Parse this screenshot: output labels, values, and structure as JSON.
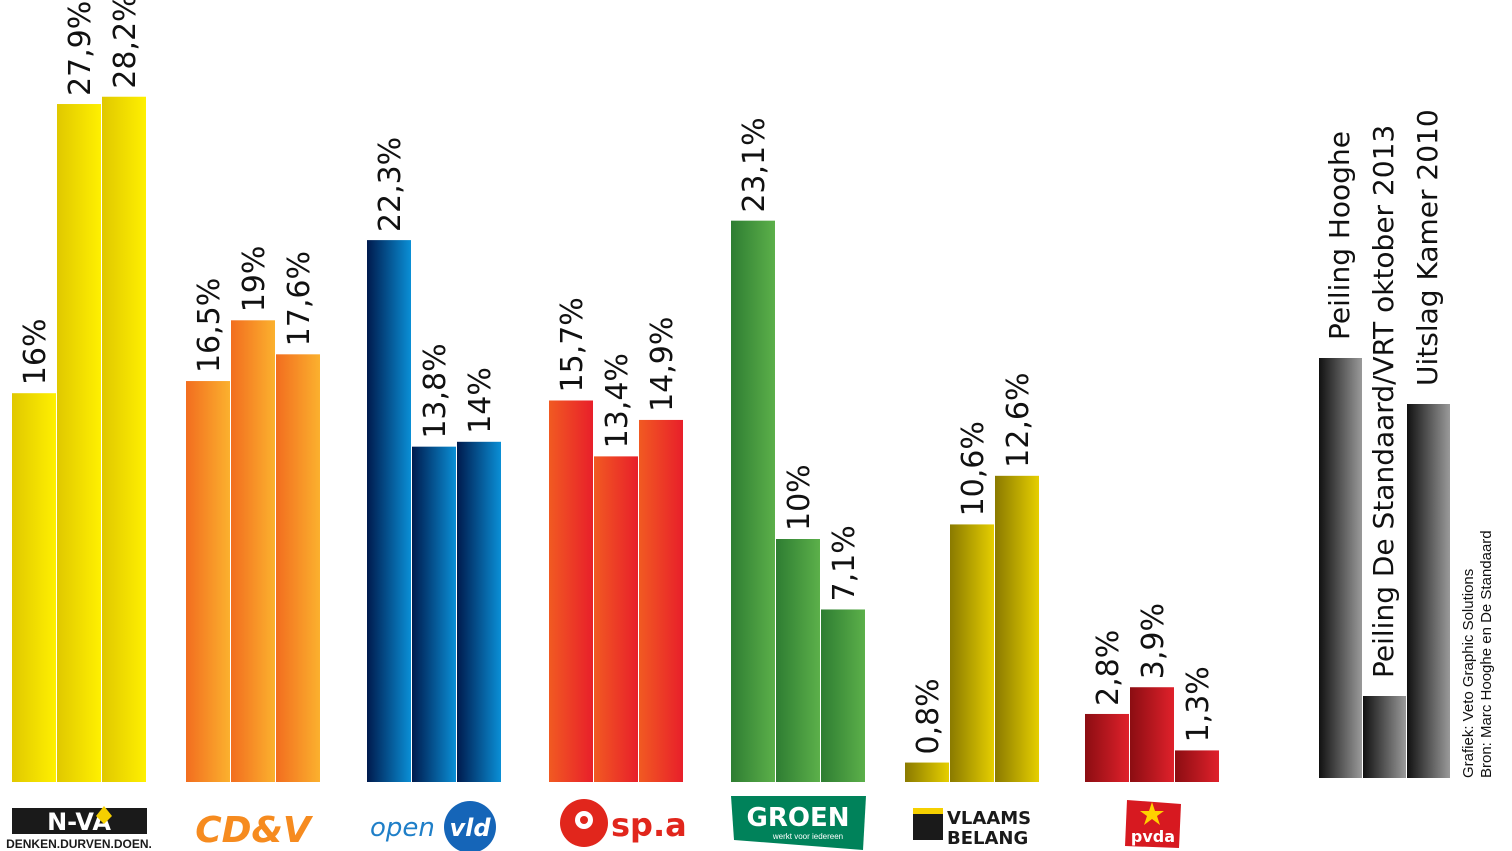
{
  "chart_data": {
    "type": "bar",
    "ylim": [
      0,
      30
    ],
    "series": [
      {
        "name": "Peiling Hooghe",
        "color": "#000000"
      },
      {
        "name": "Peiling De Standaard/VRT oktober 2013",
        "color": "#333333"
      },
      {
        "name": "Uitslag Kamer 2010",
        "color": "#555555"
      }
    ],
    "groups": [
      {
        "party": "N-VA",
        "logo_text": "N-VA",
        "logo_sub": "DENKEN.DURVEN.DOEN.",
        "color_dark": "#e0c800",
        "color_light": "#fff000",
        "values": [
          16,
          27.9,
          28.2
        ],
        "labels": [
          "16%",
          "27,9%",
          "28,2%"
        ]
      },
      {
        "party": "CD&V",
        "logo_text": "CD&V",
        "color_dark": "#f26d1f",
        "color_light": "#fbb12e",
        "values": [
          16.5,
          19,
          17.6
        ],
        "labels": [
          "16,5%",
          "19%",
          "17,6%"
        ]
      },
      {
        "party": "Open VLD",
        "logo_text": "open",
        "logo_badge": "vld",
        "color_dark": "#001a4d",
        "color_light": "#0a8fd6",
        "values": [
          22.3,
          13.8,
          14
        ],
        "labels": [
          "22,3%",
          "13,8%",
          "14%"
        ]
      },
      {
        "party": "sp.a",
        "logo_text": "sp.a",
        "color_dark": "#f15a22",
        "color_light": "#e81f2a",
        "values": [
          15.7,
          13.4,
          14.9
        ],
        "labels": [
          "15,7%",
          "13,4%",
          "14,9%"
        ]
      },
      {
        "party": "Groen",
        "logo_text": "GROEN",
        "logo_sub": "werkt voor iedereen",
        "color_dark": "#2e7d32",
        "color_light": "#5cb04a",
        "values": [
          23.1,
          10,
          7.1
        ],
        "labels": [
          "23,1%",
          "10%",
          "7,1%"
        ]
      },
      {
        "party": "Vlaams Belang",
        "logo_text": "VLAAMS",
        "logo_text2": "BELANG",
        "color_dark": "#8a7a00",
        "color_light": "#e6cf00",
        "values": [
          0.8,
          10.6,
          12.6
        ],
        "labels": [
          "0,8%",
          "10,6%",
          "12,6%"
        ]
      },
      {
        "party": "PVDA",
        "logo_text": "pvda",
        "color_dark": "#8b0d12",
        "color_light": "#e0212b",
        "values": [
          2.8,
          3.9,
          1.3
        ],
        "labels": [
          "2,8%",
          "3,9%",
          "1,3%"
        ]
      }
    ],
    "credits": [
      "Grafiek: Veto Graphic Solutions",
      "Bron: Marc Hooghe en De Standaard"
    ]
  }
}
